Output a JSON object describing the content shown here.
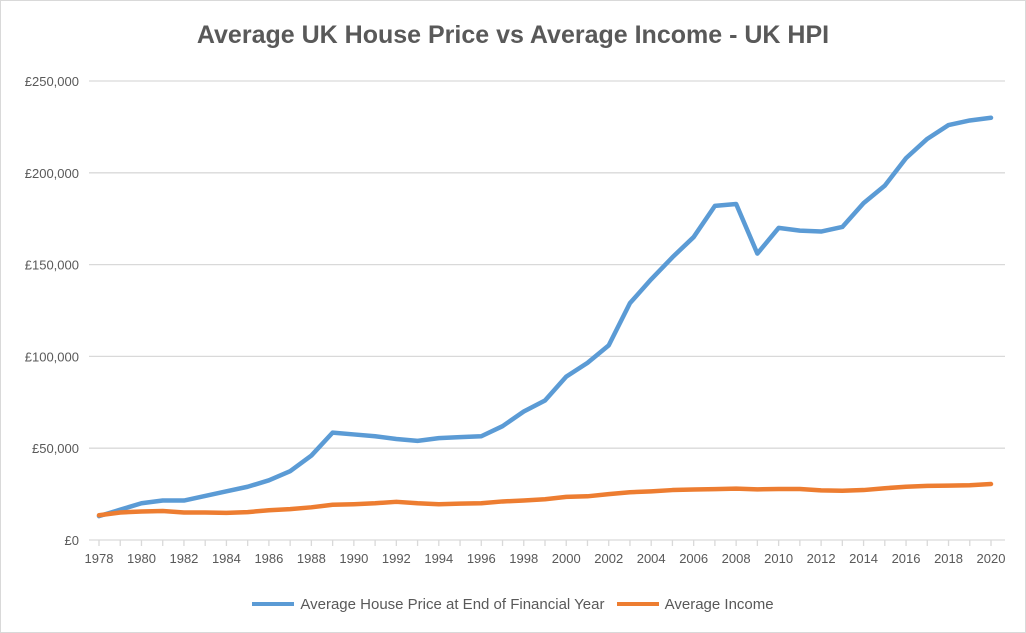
{
  "chart_data": {
    "type": "line",
    "title": "Average UK House Price vs Average Income - UK HPI",
    "xlabel": "",
    "ylabel": "",
    "ylim": [
      0,
      250000
    ],
    "yticks": [
      "£0",
      "£50,000",
      "£100,000",
      "£150,000",
      "£200,000",
      "£250,000"
    ],
    "ytick_values": [
      0,
      50000,
      100000,
      150000,
      200000,
      250000
    ],
    "x": [
      1978,
      1979,
      1980,
      1981,
      1982,
      1983,
      1984,
      1985,
      1986,
      1987,
      1988,
      1989,
      1990,
      1991,
      1992,
      1993,
      1994,
      1995,
      1996,
      1997,
      1998,
      1999,
      2000,
      2001,
      2002,
      2003,
      2004,
      2005,
      2006,
      2007,
      2008,
      2009,
      2010,
      2011,
      2012,
      2013,
      2014,
      2015,
      2016,
      2017,
      2018,
      2019,
      2020
    ],
    "xtick_labels": [
      "1978",
      "1980",
      "1982",
      "1984",
      "1986",
      "1988",
      "1990",
      "1992",
      "1994",
      "1996",
      "1998",
      "2000",
      "2002",
      "2004",
      "2006",
      "2008",
      "2010",
      "2012",
      "2014",
      "2016",
      "2018",
      "2020"
    ],
    "grid": true,
    "legend": "bottom",
    "series": [
      {
        "name": "Average House Price at End of Financial Year",
        "color": "#5b9bd5",
        "values": [
          13000,
          16500,
          20000,
          21500,
          21500,
          24000,
          26500,
          29000,
          32500,
          37500,
          46000,
          58500,
          57500,
          56500,
          55000,
          54000,
          55500,
          56000,
          56500,
          62000,
          70000,
          76000,
          89000,
          96500,
          106000,
          129000,
          142000,
          154000,
          165000,
          182000,
          183000,
          156000,
          170000,
          168500,
          168000,
          170500,
          183500,
          193000,
          208000,
          218500,
          226000,
          228500,
          230000
        ]
      },
      {
        "name": "Average Income",
        "color": "#ed7d31",
        "values": [
          13500,
          15000,
          15500,
          15800,
          15000,
          15000,
          14800,
          15200,
          16200,
          16800,
          17800,
          19200,
          19500,
          20000,
          20800,
          20000,
          19500,
          19800,
          20000,
          21000,
          21500,
          22200,
          23500,
          23800,
          25000,
          26000,
          26500,
          27200,
          27500,
          27700,
          28000,
          27600,
          27800,
          27800,
          27000,
          26800,
          27200,
          28200,
          29000,
          29500,
          29600,
          29800,
          30500
        ]
      }
    ]
  }
}
